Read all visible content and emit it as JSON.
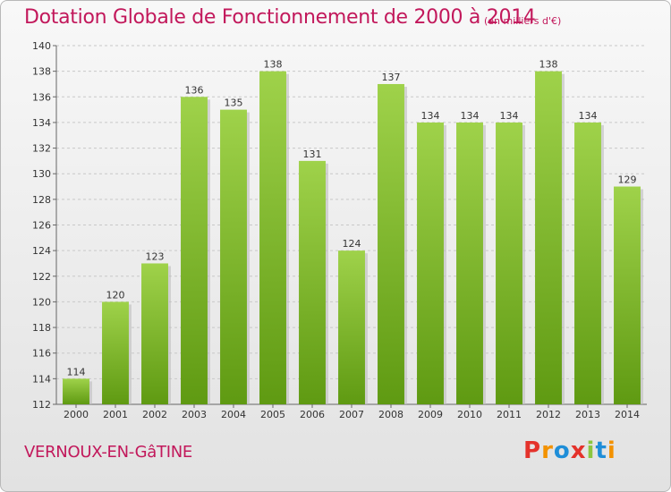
{
  "header": {
    "title": "Dotation Globale de Fonctionnement de 2000 à 2014",
    "subtitle": "(en milliers d'€)"
  },
  "footer": {
    "location": "VERNOUX-EN-GâTINE",
    "brand": [
      "P",
      "r",
      "o",
      "x",
      "i",
      "t",
      "i"
    ]
  },
  "colors": {
    "title": "#c2185b",
    "bar_light": "#9fd24a",
    "bar_dark": "#5f9a12",
    "brand": [
      "#e4322b",
      "#f39200",
      "#1f8ed8",
      "#e4322b",
      "#8cc63f",
      "#1f8ed8",
      "#f39200"
    ]
  },
  "chart_data": {
    "type": "bar",
    "title": "Dotation Globale de Fonctionnement de 2000 à 2014",
    "subtitle": "(en milliers d'€)",
    "categories": [
      "2000",
      "2001",
      "2002",
      "2003",
      "2004",
      "2005",
      "2006",
      "2007",
      "2008",
      "2009",
      "2010",
      "2011",
      "2012",
      "2013",
      "2014"
    ],
    "values": [
      114,
      120,
      123,
      136,
      135,
      138,
      131,
      124,
      137,
      134,
      134,
      134,
      138,
      134,
      129
    ],
    "ylim": [
      112,
      140
    ],
    "yticks": [
      112,
      114,
      116,
      118,
      120,
      122,
      124,
      126,
      128,
      130,
      132,
      134,
      136,
      138,
      140
    ],
    "grid": true,
    "legend": "none"
  }
}
